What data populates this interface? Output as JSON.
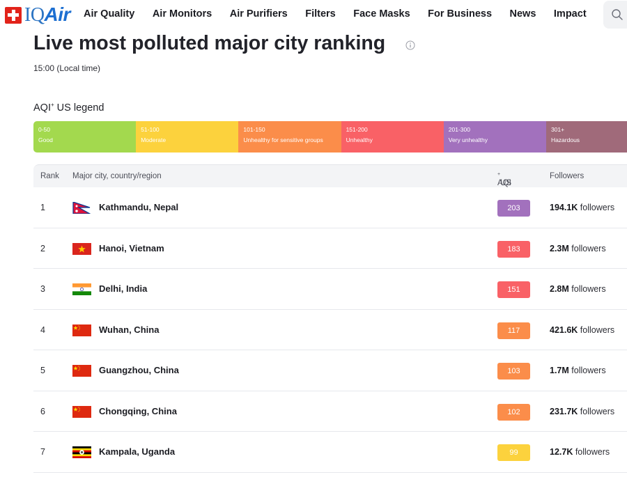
{
  "brand": {
    "prefix": "IQ",
    "suffix": "Air"
  },
  "nav": {
    "items": [
      "Air Quality",
      "Air Monitors",
      "Air Purifiers",
      "Filters",
      "Face Masks",
      "For Business",
      "News",
      "Impact"
    ],
    "search_icon": "search-icon"
  },
  "page": {
    "title": "Live most polluted major city ranking",
    "time": "15:00 (Local time)"
  },
  "legend": {
    "title": "AQI",
    "title_sup": "+",
    "title_suffix": " US legend",
    "segments": [
      {
        "range": "0-50",
        "label": "Good",
        "color": "#a3d94e"
      },
      {
        "range": "51-100",
        "label": "Moderate",
        "color": "#fcd23d"
      },
      {
        "range": "101-150",
        "label": "Unhealthy for sensitive groups",
        "color": "#fb8d4a"
      },
      {
        "range": "151-200",
        "label": "Unhealthy",
        "color": "#f96166"
      },
      {
        "range": "201-300",
        "label": "Very unhealthy",
        "color": "#a271bd"
      },
      {
        "range": "301+",
        "label": "Hazardous",
        "color": "#a06a7a"
      }
    ]
  },
  "table": {
    "headers": {
      "rank": "Rank",
      "city": "Major city, country/region",
      "aqi": "AQI",
      "aqi_sup": "+",
      "aqi_suffix": " US",
      "followers": "Followers"
    },
    "follower_suffix": " followers",
    "rows": [
      {
        "rank": "1",
        "city": "Kathmandu, Nepal",
        "flag": "nepal",
        "aqi": "203",
        "color": "#a271bd",
        "followers": "194.1K"
      },
      {
        "rank": "2",
        "city": "Hanoi, Vietnam",
        "flag": "vietnam",
        "aqi": "183",
        "color": "#f96166",
        "followers": "2.3M"
      },
      {
        "rank": "3",
        "city": "Delhi, India",
        "flag": "india",
        "aqi": "151",
        "color": "#f96166",
        "followers": "2.8M"
      },
      {
        "rank": "4",
        "city": "Wuhan, China",
        "flag": "china",
        "aqi": "117",
        "color": "#fb8d4a",
        "followers": "421.6K"
      },
      {
        "rank": "5",
        "city": "Guangzhou, China",
        "flag": "china",
        "aqi": "103",
        "color": "#fb8d4a",
        "followers": "1.7M"
      },
      {
        "rank": "6",
        "city": "Chongqing, China",
        "flag": "china",
        "aqi": "102",
        "color": "#fb8d4a",
        "followers": "231.7K"
      },
      {
        "rank": "7",
        "city": "Kampala, Uganda",
        "flag": "uganda",
        "aqi": "99",
        "color": "#fcd23d",
        "followers": "12.7K"
      }
    ]
  }
}
